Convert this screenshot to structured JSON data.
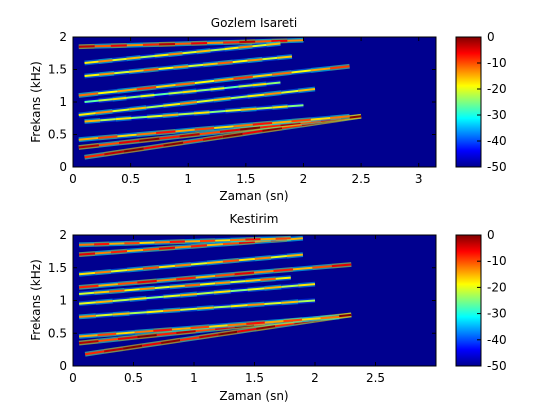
{
  "chart_data": [
    {
      "type": "heatmap",
      "title": "Gozlem Isareti",
      "xlabel": "Zaman (sn)",
      "ylabel": "Frekans (kHz)",
      "xlim": [
        0,
        3.15
      ],
      "ylim": [
        0,
        2
      ],
      "xticks": [
        "0",
        "0.5",
        "1",
        "1.5",
        "2",
        "2.5",
        "3"
      ],
      "xtick_values": [
        0,
        0.5,
        1,
        1.5,
        2,
        2.5,
        3
      ],
      "yticks": [
        "0",
        "0.5",
        "1",
        "1.5",
        "2"
      ],
      "ytick_values": [
        0,
        0.5,
        1,
        1.5,
        2
      ],
      "colorbar": {
        "range": [
          -50,
          0
        ],
        "ticks": [
          "0",
          "-10",
          "-20",
          "-30",
          "-40",
          "-50"
        ],
        "tick_values": [
          0,
          -10,
          -20,
          -30,
          -40,
          -50
        ],
        "colormap": "jet"
      },
      "components": [
        {
          "t0": 0.1,
          "t1": 2.5,
          "f0": 0.15,
          "f1": 0.78,
          "level": -3,
          "width": 0.03
        },
        {
          "t0": 0.05,
          "t1": 2.5,
          "f0": 0.3,
          "f1": 0.78,
          "level": -5,
          "width": 0.028
        },
        {
          "t0": 0.05,
          "t1": 2.4,
          "f0": 0.42,
          "f1": 0.78,
          "level": -12,
          "width": 0.025
        },
        {
          "t0": 0.1,
          "t1": 2.0,
          "f0": 0.7,
          "f1": 0.95,
          "level": -20,
          "width": 0.025
        },
        {
          "t0": 0.05,
          "t1": 2.1,
          "f0": 0.8,
          "f1": 1.2,
          "level": -18,
          "width": 0.025
        },
        {
          "t0": 0.1,
          "t1": 1.8,
          "f0": 1.0,
          "f1": 1.3,
          "level": -22,
          "width": 0.025
        },
        {
          "t0": 0.05,
          "t1": 2.4,
          "f0": 1.1,
          "f1": 1.55,
          "level": -14,
          "width": 0.025
        },
        {
          "t0": 0.1,
          "t1": 1.9,
          "f0": 1.4,
          "f1": 1.7,
          "level": -16,
          "width": 0.025
        },
        {
          "t0": 0.05,
          "t1": 2.0,
          "f0": 1.85,
          "f1": 1.95,
          "level": -8,
          "width": 0.03
        },
        {
          "t0": 0.1,
          "t1": 1.8,
          "f0": 1.6,
          "f1": 1.9,
          "level": -18,
          "width": 0.025
        }
      ]
    },
    {
      "type": "heatmap",
      "title": "Kestirim",
      "xlabel": "Zaman (sn)",
      "ylabel": "Frekans (kHz)",
      "xlim": [
        0,
        3.0
      ],
      "ylim": [
        0,
        2
      ],
      "xticks": [
        "0",
        "0.5",
        "1",
        "1.5",
        "2",
        "2.5"
      ],
      "xtick_values": [
        0,
        0.5,
        1,
        1.5,
        2,
        2.5
      ],
      "yticks": [
        "0",
        "0.5",
        "1",
        "1.5",
        "2"
      ],
      "ytick_values": [
        0,
        0.5,
        1,
        1.5,
        2
      ],
      "colorbar": {
        "range": [
          -50,
          0
        ],
        "ticks": [
          "0",
          "-10",
          "-20",
          "-30",
          "-40",
          "-50"
        ],
        "tick_values": [
          0,
          -10,
          -20,
          -30,
          -40,
          -50
        ],
        "colormap": "jet"
      },
      "components": [
        {
          "t0": 0.1,
          "t1": 2.3,
          "f0": 0.18,
          "f1": 0.78,
          "level": -3,
          "width": 0.03
        },
        {
          "t0": 0.05,
          "t1": 2.3,
          "f0": 0.35,
          "f1": 0.78,
          "level": -5,
          "width": 0.028
        },
        {
          "t0": 0.05,
          "t1": 2.2,
          "f0": 0.45,
          "f1": 0.75,
          "level": -12,
          "width": 0.025
        },
        {
          "t0": 0.05,
          "t1": 2.0,
          "f0": 0.75,
          "f1": 1.0,
          "level": -18,
          "width": 0.025
        },
        {
          "t0": 0.05,
          "t1": 2.0,
          "f0": 0.95,
          "f1": 1.25,
          "level": -20,
          "width": 0.025
        },
        {
          "t0": 0.05,
          "t1": 1.8,
          "f0": 1.1,
          "f1": 1.35,
          "level": -16,
          "width": 0.025
        },
        {
          "t0": 0.05,
          "t1": 2.3,
          "f0": 1.2,
          "f1": 1.55,
          "level": -10,
          "width": 0.025
        },
        {
          "t0": 0.05,
          "t1": 1.9,
          "f0": 1.4,
          "f1": 1.7,
          "level": -15,
          "width": 0.025
        },
        {
          "t0": 0.05,
          "t1": 1.9,
          "f0": 1.7,
          "f1": 1.95,
          "level": -10,
          "width": 0.025
        },
        {
          "t0": 0.05,
          "t1": 1.8,
          "f0": 1.85,
          "f1": 1.95,
          "level": -12,
          "width": 0.03
        }
      ]
    }
  ]
}
